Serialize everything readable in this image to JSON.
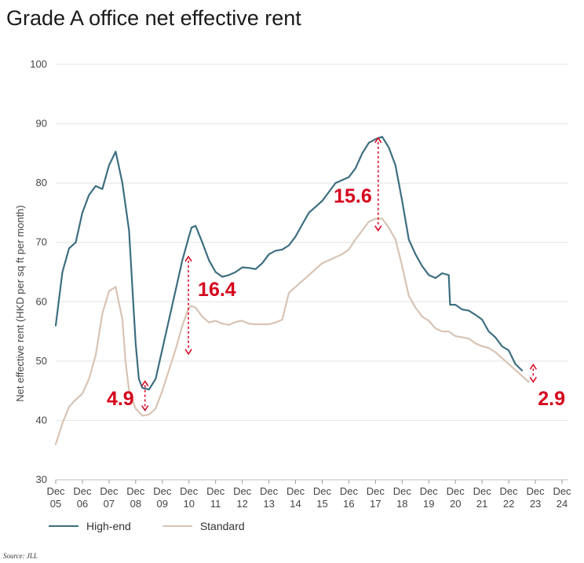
{
  "page": {
    "title": "Grade A office net effective rent",
    "source": "Source: JLL"
  },
  "chart_data": {
    "type": "line",
    "title": "Grade A office net effective rent",
    "ylabel": "Net effective rent (HKD per sq ft per month)",
    "xlabel": "",
    "ylim": [
      30,
      100
    ],
    "yticks": [
      30,
      40,
      50,
      60,
      70,
      80,
      90,
      100
    ],
    "xlim": [
      0,
      19
    ],
    "grid": true,
    "legend": "bottom-left",
    "x_ticks": [
      {
        "x": 0,
        "line1": "Dec",
        "line2": "05"
      },
      {
        "x": 1,
        "line1": "Dec",
        "line2": "06"
      },
      {
        "x": 2,
        "line1": "Dec",
        "line2": "07"
      },
      {
        "x": 3,
        "line1": "Dec",
        "line2": "08"
      },
      {
        "x": 4,
        "line1": "Dec",
        "line2": "09"
      },
      {
        "x": 5,
        "line1": "Dec",
        "line2": "10"
      },
      {
        "x": 6,
        "line1": "Dec",
        "line2": "11"
      },
      {
        "x": 7,
        "line1": "Dec",
        "line2": "12"
      },
      {
        "x": 8,
        "line1": "Dec",
        "line2": "13"
      },
      {
        "x": 9,
        "line1": "Dec",
        "line2": "14"
      },
      {
        "x": 10,
        "line1": "Dec",
        "line2": "15"
      },
      {
        "x": 11,
        "line1": "Dec",
        "line2": "16"
      },
      {
        "x": 12,
        "line1": "Dec",
        "line2": "17"
      },
      {
        "x": 13,
        "line1": "Dec",
        "line2": "18"
      },
      {
        "x": 14,
        "line1": "Dec",
        "line2": "19"
      },
      {
        "x": 15,
        "line1": "Dec",
        "line2": "20"
      },
      {
        "x": 16,
        "line1": "Dec",
        "line2": "21"
      },
      {
        "x": 17,
        "line1": "Dec",
        "line2": "22"
      },
      {
        "x": 18,
        "line1": "Dec",
        "line2": "23"
      },
      {
        "x": 19,
        "line1": "Dec",
        "line2": "24"
      }
    ],
    "series": [
      {
        "name": "High-end",
        "color": "#3d6e80",
        "points": [
          [
            0,
            56
          ],
          [
            0.25,
            65
          ],
          [
            0.5,
            69
          ],
          [
            0.75,
            70
          ],
          [
            1,
            75
          ],
          [
            1.25,
            78
          ],
          [
            1.5,
            79.5
          ],
          [
            1.75,
            79
          ],
          [
            2,
            83
          ],
          [
            2.25,
            85.3
          ],
          [
            2.5,
            80
          ],
          [
            2.75,
            72
          ],
          [
            2.88,
            62
          ],
          [
            3,
            53
          ],
          [
            3.12,
            47
          ],
          [
            3.25,
            45.5
          ],
          [
            3.5,
            45.2
          ],
          [
            3.75,
            47
          ],
          [
            4,
            52
          ],
          [
            4.25,
            57
          ],
          [
            4.5,
            62
          ],
          [
            4.75,
            67
          ],
          [
            5,
            71
          ],
          [
            5.1,
            72.5
          ],
          [
            5.25,
            72.8
          ],
          [
            5.5,
            70
          ],
          [
            5.75,
            67
          ],
          [
            6,
            65
          ],
          [
            6.25,
            64.2
          ],
          [
            6.5,
            64.5
          ],
          [
            6.75,
            65
          ],
          [
            7,
            65.8
          ],
          [
            7.25,
            65.7
          ],
          [
            7.5,
            65.5
          ],
          [
            7.75,
            66.5
          ],
          [
            8,
            68
          ],
          [
            8.25,
            68.6
          ],
          [
            8.5,
            68.8
          ],
          [
            8.75,
            69.5
          ],
          [
            9,
            71
          ],
          [
            9.25,
            73
          ],
          [
            9.5,
            75
          ],
          [
            9.75,
            76
          ],
          [
            10,
            77
          ],
          [
            10.25,
            78.5
          ],
          [
            10.5,
            80
          ],
          [
            10.75,
            80.5
          ],
          [
            11,
            81
          ],
          [
            11.25,
            82.5
          ],
          [
            11.5,
            85
          ],
          [
            11.75,
            86.8
          ],
          [
            12,
            87.4
          ],
          [
            12.25,
            87.8
          ],
          [
            12.5,
            86
          ],
          [
            12.75,
            83
          ],
          [
            13,
            77
          ],
          [
            13.25,
            70.5
          ],
          [
            13.5,
            68
          ],
          [
            13.75,
            66
          ],
          [
            14,
            64.5
          ],
          [
            14.25,
            64
          ],
          [
            14.5,
            64.8
          ],
          [
            14.75,
            64.5
          ],
          [
            14.8,
            59.5
          ],
          [
            15,
            59.5
          ],
          [
            15.25,
            58.7
          ],
          [
            15.5,
            58.5
          ],
          [
            15.75,
            57.8
          ],
          [
            16,
            57
          ],
          [
            16.25,
            55
          ],
          [
            16.5,
            54
          ],
          [
            16.75,
            52.5
          ],
          [
            17,
            51.8
          ],
          [
            17.25,
            49.5
          ],
          [
            17.5,
            48.4
          ]
        ]
      },
      {
        "name": "Standard",
        "color": "#d8c4b4",
        "points": [
          [
            0,
            36
          ],
          [
            0.25,
            39.5
          ],
          [
            0.5,
            42.3
          ],
          [
            0.75,
            43.5
          ],
          [
            1,
            44.5
          ],
          [
            1.25,
            47
          ],
          [
            1.5,
            51
          ],
          [
            1.75,
            58
          ],
          [
            2,
            61.8
          ],
          [
            2.25,
            62.5
          ],
          [
            2.5,
            57
          ],
          [
            2.62,
            50
          ],
          [
            2.75,
            45
          ],
          [
            3,
            42
          ],
          [
            3.25,
            40.8
          ],
          [
            3.5,
            41
          ],
          [
            3.75,
            42
          ],
          [
            4,
            45
          ],
          [
            4.25,
            48.5
          ],
          [
            4.5,
            52
          ],
          [
            4.75,
            56
          ],
          [
            5,
            59
          ],
          [
            5.1,
            59.3
          ],
          [
            5.25,
            59
          ],
          [
            5.5,
            57.5
          ],
          [
            5.75,
            56.5
          ],
          [
            6,
            56.8
          ],
          [
            6.25,
            56.3
          ],
          [
            6.5,
            56.1
          ],
          [
            6.75,
            56.6
          ],
          [
            7,
            56.8
          ],
          [
            7.25,
            56.3
          ],
          [
            7.5,
            56.2
          ],
          [
            7.75,
            56.2
          ],
          [
            8,
            56.2
          ],
          [
            8.25,
            56.5
          ],
          [
            8.5,
            57
          ],
          [
            8.75,
            61.5
          ],
          [
            9,
            62.5
          ],
          [
            9.25,
            63.5
          ],
          [
            9.5,
            64.5
          ],
          [
            9.75,
            65.5
          ],
          [
            10,
            66.5
          ],
          [
            10.25,
            67
          ],
          [
            10.5,
            67.5
          ],
          [
            10.75,
            68
          ],
          [
            11,
            68.8
          ],
          [
            11.25,
            70.5
          ],
          [
            11.5,
            72
          ],
          [
            11.75,
            73.5
          ],
          [
            12,
            74
          ],
          [
            12.25,
            74
          ],
          [
            12.5,
            72.5
          ],
          [
            12.75,
            70.5
          ],
          [
            13,
            66
          ],
          [
            13.25,
            61
          ],
          [
            13.5,
            59
          ],
          [
            13.75,
            57.5
          ],
          [
            14,
            56.8
          ],
          [
            14.25,
            55.5
          ],
          [
            14.5,
            55
          ],
          [
            14.75,
            55
          ],
          [
            15,
            54.2
          ],
          [
            15.25,
            54
          ],
          [
            15.5,
            53.8
          ],
          [
            15.75,
            53
          ],
          [
            16,
            52.5
          ],
          [
            16.25,
            52.2
          ],
          [
            16.5,
            51.5
          ],
          [
            16.75,
            50.5
          ],
          [
            17,
            49.5
          ],
          [
            17.25,
            48.5
          ],
          [
            17.5,
            47.5
          ],
          [
            17.75,
            46.5
          ]
        ]
      }
    ],
    "annotations": [
      {
        "label": "4.9",
        "x": 3.35,
        "y_top": 46.6,
        "y_bottom": 41.7
      },
      {
        "label": "16.4",
        "x": 4.98,
        "y_top": 67.6,
        "y_bottom": 51.2
      },
      {
        "label": "15.6",
        "x": 12.1,
        "y_top": 87.6,
        "y_bottom": 72
      },
      {
        "label": "2.9",
        "x": 17.92,
        "y_top": 49.4,
        "y_bottom": 46.5
      }
    ],
    "annotation_color": "#d6001c"
  }
}
